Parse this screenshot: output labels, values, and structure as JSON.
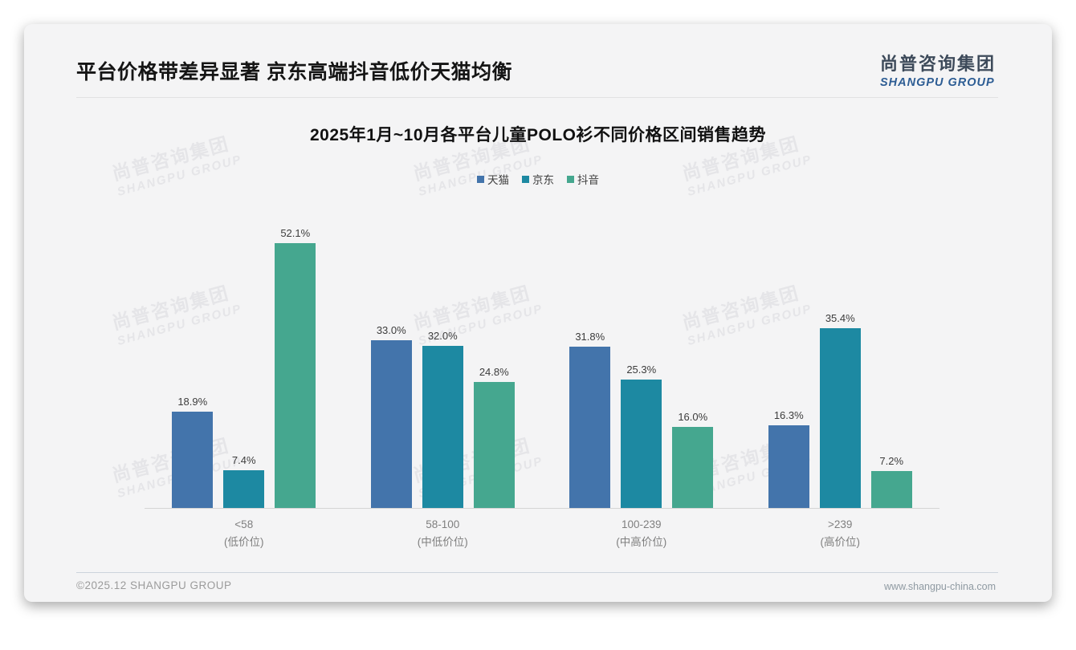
{
  "slide": {
    "title": "平台价格带差异显著 京东高端抖音低价天猫均衡",
    "logo": {
      "cn": "尚普咨询集团",
      "en": "SHANGPU GROUP"
    },
    "footer": {
      "copyright": "©2025.12 SHANGPU GROUP",
      "website": "www.shangpu-china.com"
    },
    "watermark": {
      "line1": "尚普咨询集团",
      "line2": "SHANGPU GROUP"
    }
  },
  "chart_data": {
    "type": "bar",
    "title": "2025年1月~10月各平台儿童POLO衫不同价格区间销售趋势",
    "categories": [
      {
        "label": "<58",
        "sublabel": "(低价位)"
      },
      {
        "label": "58-100",
        "sublabel": "(中低价位)"
      },
      {
        "label": "100-239",
        "sublabel": "(中高价位)"
      },
      {
        "label": ">239",
        "sublabel": "(高价位)"
      }
    ],
    "series": [
      {
        "name": "天猫",
        "color": "#4374ab",
        "values": [
          18.9,
          33.0,
          31.8,
          16.3
        ]
      },
      {
        "name": "京东",
        "color": "#1d89a2",
        "values": [
          7.4,
          32.0,
          25.3,
          35.4
        ]
      },
      {
        "name": "抖音",
        "color": "#45a78f",
        "values": [
          52.1,
          24.8,
          16.0,
          7.2
        ]
      }
    ],
    "value_suffix": "%",
    "value_decimals": 1,
    "ylim": [
      0,
      55
    ],
    "legend_position": "top",
    "grid": false
  },
  "colors": {
    "logo_cn": "#3d4a5a",
    "logo_en": "#2d5d94",
    "axis_line": "#d5d5d5"
  }
}
